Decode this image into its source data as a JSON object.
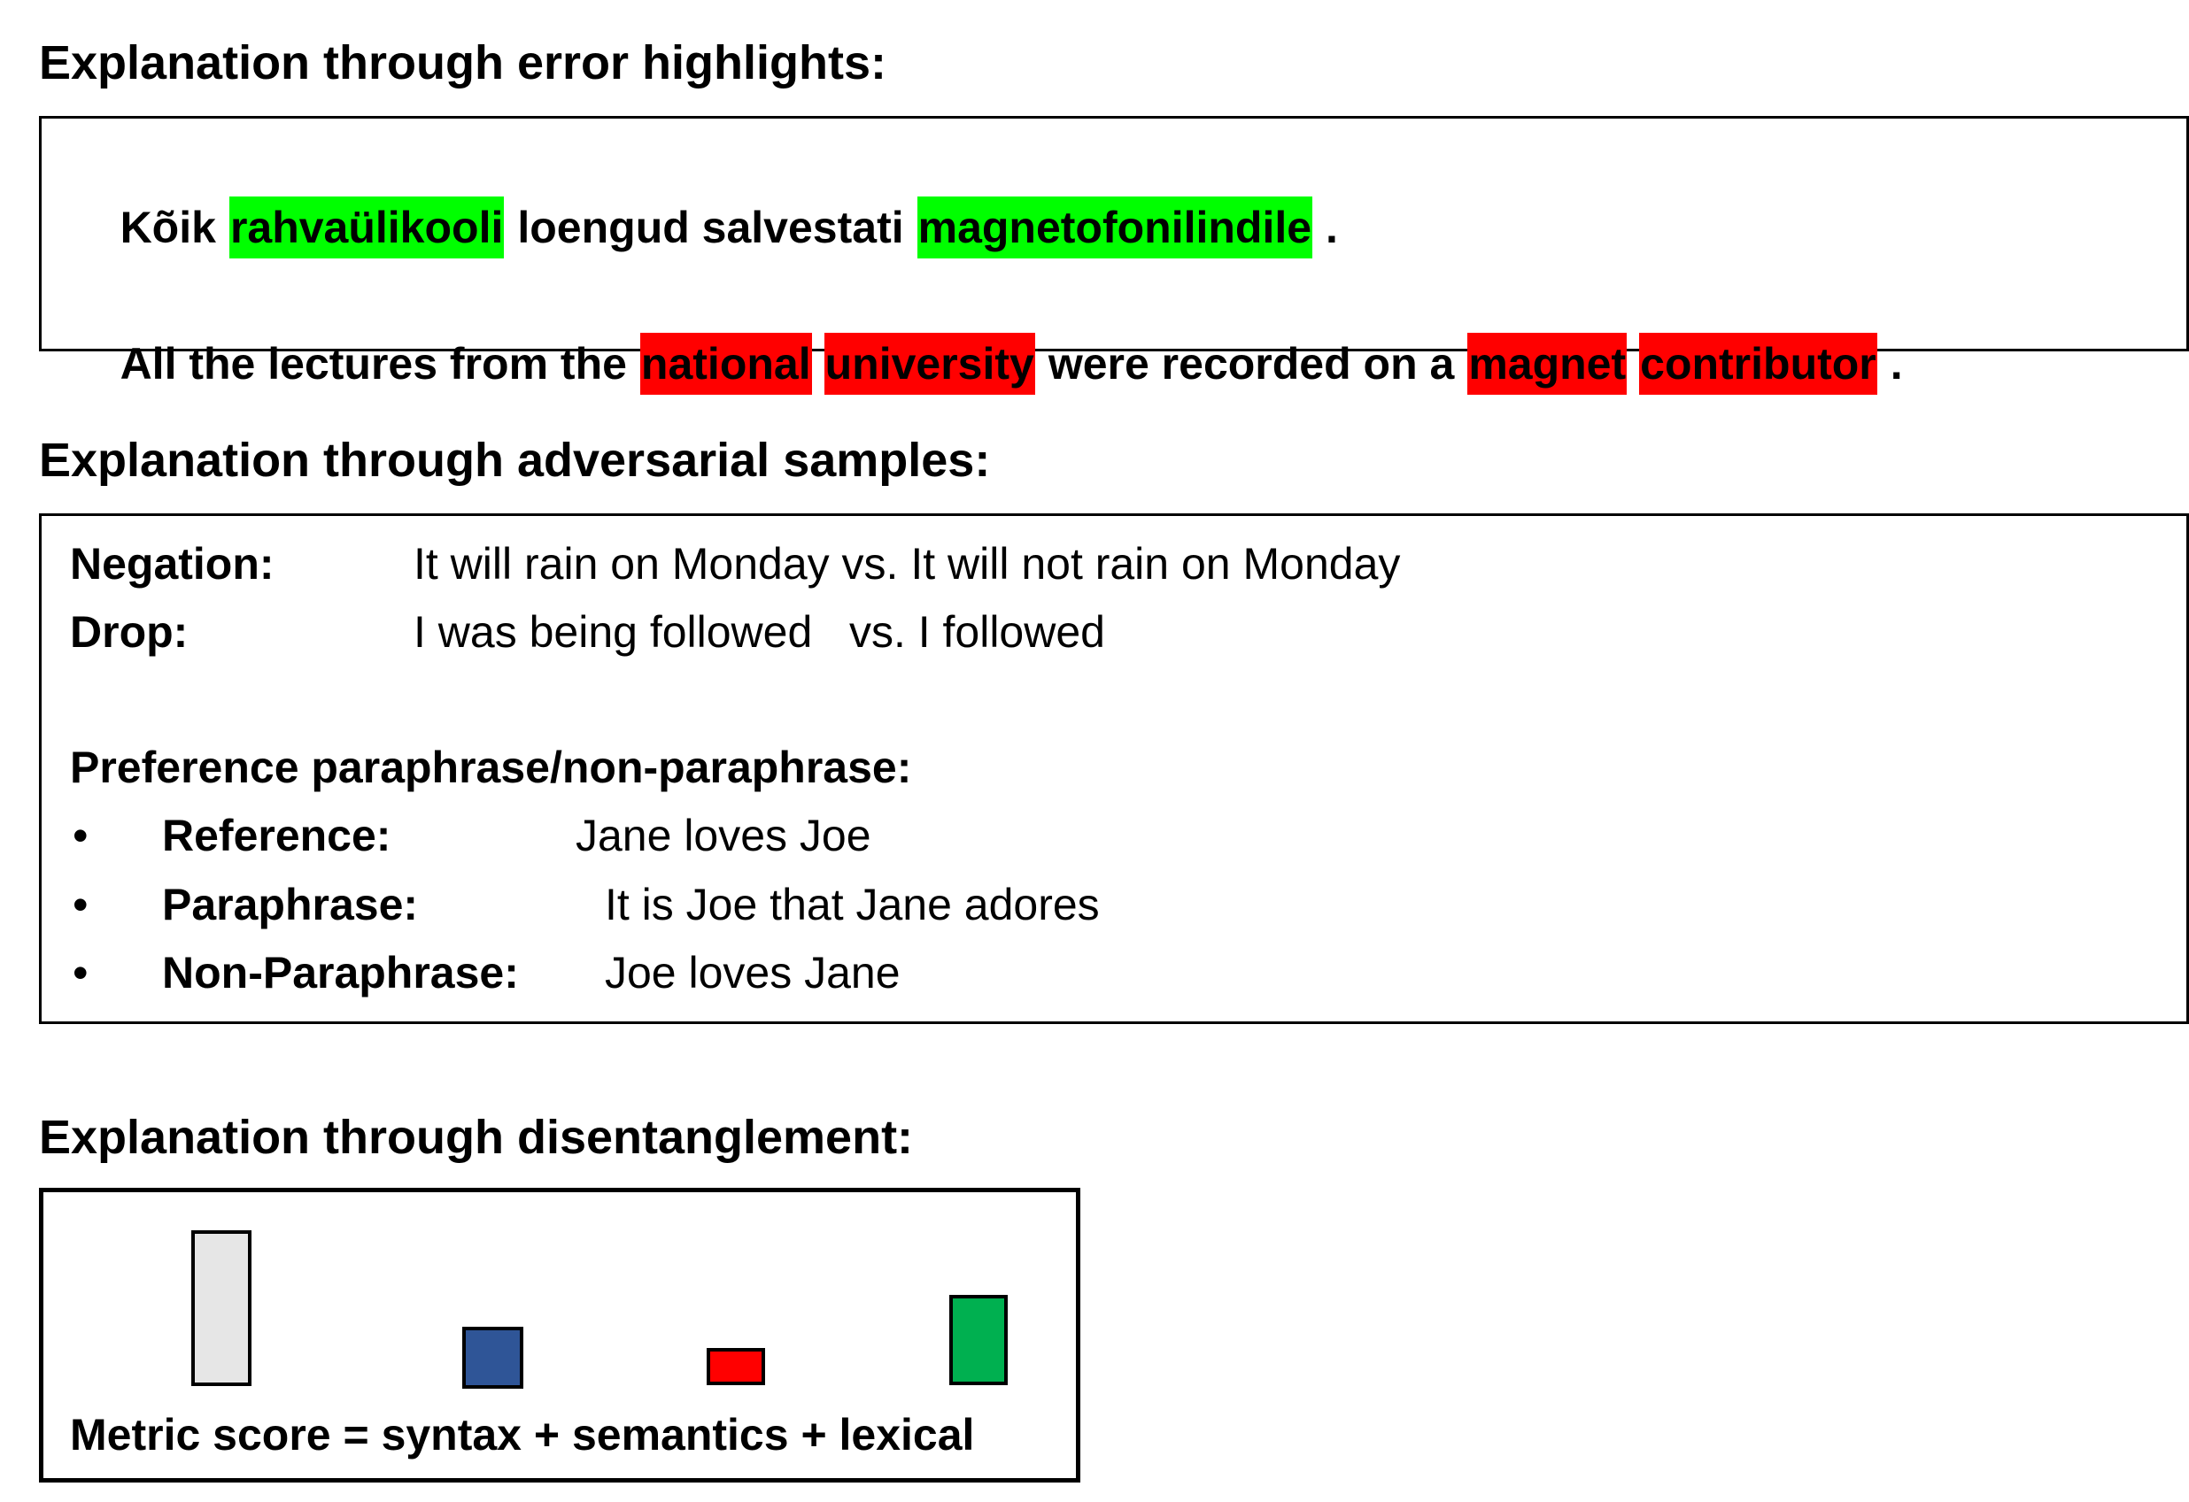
{
  "sections": [
    {
      "title": "Explanation through error highlights:",
      "source": [
        "Kõik",
        "rahvaülikooli",
        "loengud salvestati",
        "magnetofonilindile",
        "."
      ],
      "target": [
        "All the lectures from the",
        "national",
        "university",
        "were recorded on a",
        "magnet",
        "contributor",
        "."
      ]
    },
    {
      "title": "Explanation through adversarial samples:",
      "rows": [
        {
          "label": "Negation:",
          "text": "It will rain on Monday vs. It will not rain on Monday"
        },
        {
          "label": "Drop:",
          "text": "I was being followed   vs. I followed"
        }
      ],
      "subheading": "Preference paraphrase/non-paraphrase:",
      "items": [
        {
          "label": "Reference:",
          "text": "Jane loves Joe"
        },
        {
          "label": "Paraphrase:",
          "text": "It is Joe that Jane adores"
        },
        {
          "label": "Non-Paraphrase:",
          "text": "Joe loves Jane"
        }
      ]
    },
    {
      "title": "Explanation through disentanglement:",
      "caption": "Metric score = syntax + semantics + lexical"
    }
  ]
}
